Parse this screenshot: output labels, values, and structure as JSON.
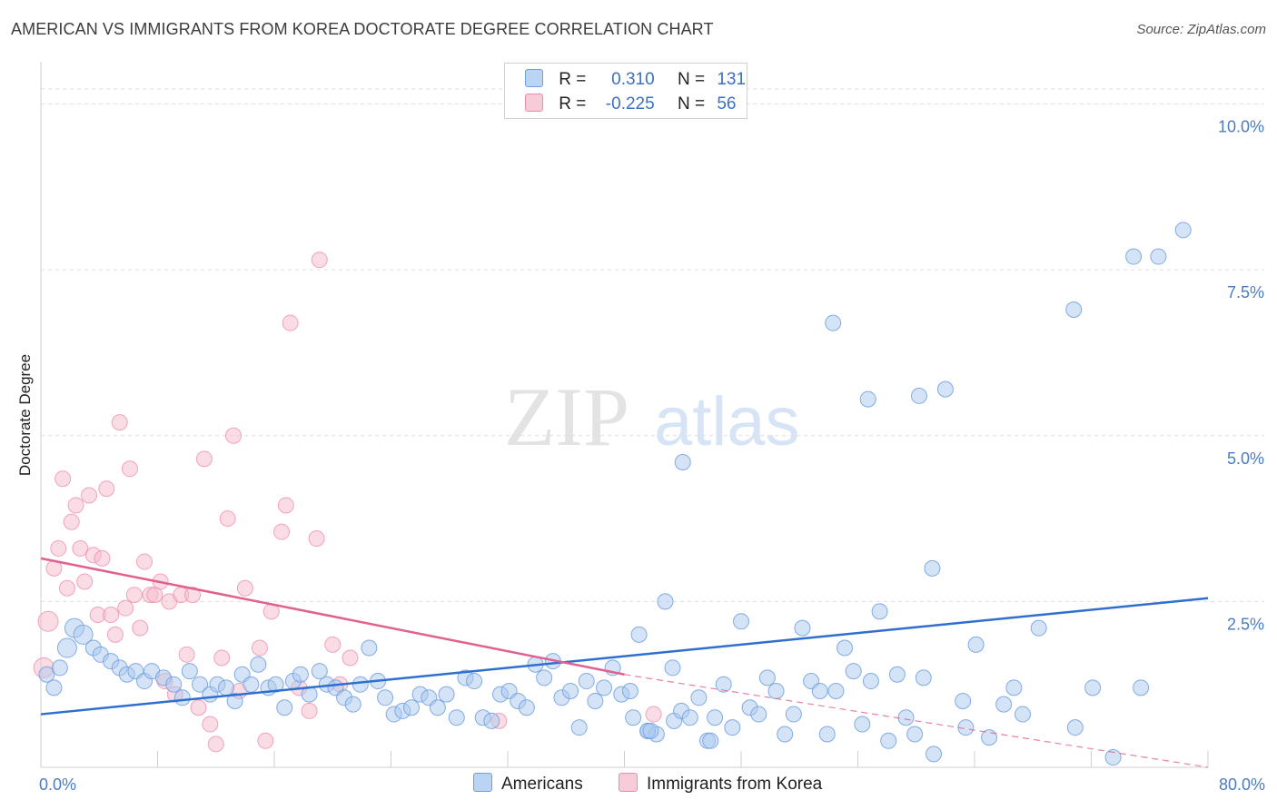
{
  "header": {
    "title": "AMERICAN VS IMMIGRANTS FROM KOREA DOCTORATE DEGREE CORRELATION CHART",
    "source": "Source: ZipAtlas.com"
  },
  "watermark": {
    "zip": "ZIP",
    "atlas": "atlas"
  },
  "legend": {
    "rows": [
      {
        "r_label": "R =",
        "r_value": "0.310",
        "n_label": "N =",
        "n_value": "131",
        "color": "#a9c9ee"
      },
      {
        "r_label": "R =",
        "r_value": "-0.225",
        "n_label": "N =",
        "n_value": "56",
        "color": "#f6b9cb"
      }
    ]
  },
  "bottom_legend": {
    "americans": "Americans",
    "korea": "Immigrants from Korea"
  },
  "chart_data": {
    "type": "scatter",
    "ylabel": "Doctorate Degree",
    "xlabel": "",
    "xlim": [
      0,
      80
    ],
    "ylim": [
      0,
      10.5
    ],
    "x_tick_labels": [
      "0.0%",
      "80.0%"
    ],
    "y_ticks": [
      {
        "value": 2.5,
        "label": "2.5%"
      },
      {
        "value": 5.0,
        "label": "5.0%"
      },
      {
        "value": 7.5,
        "label": "7.5%"
      },
      {
        "value": 10.0,
        "label": "10.0%"
      }
    ],
    "grid": "horizontal dashed",
    "legend_placement": "top-center",
    "colors": {
      "americans": "#6f9fe0",
      "americans_fill": "#a9c9ee",
      "korea": "#ee8aaa",
      "korea_fill": "#f6b9cb",
      "blue_line": "#2f6fd0",
      "pink_line": "#e2608e"
    },
    "series": [
      {
        "name": "Americans",
        "trend": {
          "x1": 0,
          "y1": 0.8,
          "x2": 80,
          "y2": 2.55
        },
        "points": [
          [
            0.4,
            1.4
          ],
          [
            0.9,
            1.2
          ],
          [
            1.3,
            1.5
          ],
          [
            1.8,
            1.8
          ],
          [
            2.3,
            2.1
          ],
          [
            2.9,
            2.0
          ],
          [
            3.6,
            1.8
          ],
          [
            4.1,
            1.7
          ],
          [
            4.8,
            1.6
          ],
          [
            5.4,
            1.5
          ],
          [
            5.9,
            1.4
          ],
          [
            6.5,
            1.45
          ],
          [
            7.1,
            1.3
          ],
          [
            7.6,
            1.45
          ],
          [
            8.4,
            1.35
          ],
          [
            9.1,
            1.25
          ],
          [
            9.7,
            1.05
          ],
          [
            10.2,
            1.45
          ],
          [
            10.9,
            1.25
          ],
          [
            11.6,
            1.1
          ],
          [
            12.1,
            1.25
          ],
          [
            12.7,
            1.2
          ],
          [
            13.3,
            1.0
          ],
          [
            13.8,
            1.4
          ],
          [
            14.4,
            1.25
          ],
          [
            14.9,
            1.55
          ],
          [
            15.6,
            1.2
          ],
          [
            16.1,
            1.25
          ],
          [
            16.7,
            0.9
          ],
          [
            17.3,
            1.3
          ],
          [
            17.8,
            1.4
          ],
          [
            18.4,
            1.1
          ],
          [
            19.1,
            1.45
          ],
          [
            19.6,
            1.25
          ],
          [
            20.2,
            1.2
          ],
          [
            20.8,
            1.05
          ],
          [
            21.4,
            0.95
          ],
          [
            21.9,
            1.25
          ],
          [
            22.5,
            1.8
          ],
          [
            23.1,
            1.3
          ],
          [
            23.6,
            1.05
          ],
          [
            24.2,
            0.8
          ],
          [
            24.8,
            0.85
          ],
          [
            25.4,
            0.9
          ],
          [
            26.0,
            1.1
          ],
          [
            26.6,
            1.05
          ],
          [
            27.2,
            0.9
          ],
          [
            27.8,
            1.1
          ],
          [
            28.5,
            0.75
          ],
          [
            29.1,
            1.35
          ],
          [
            29.7,
            1.3
          ],
          [
            30.3,
            0.75
          ],
          [
            30.9,
            0.7
          ],
          [
            31.5,
            1.1
          ],
          [
            32.1,
            1.15
          ],
          [
            32.7,
            1.0
          ],
          [
            33.3,
            0.9
          ],
          [
            33.9,
            1.55
          ],
          [
            34.5,
            1.35
          ],
          [
            35.1,
            1.6
          ],
          [
            35.7,
            1.05
          ],
          [
            36.3,
            1.15
          ],
          [
            36.9,
            0.6
          ],
          [
            37.4,
            1.3
          ],
          [
            38.0,
            1.0
          ],
          [
            38.6,
            1.2
          ],
          [
            39.2,
            1.5
          ],
          [
            39.8,
            1.1
          ],
          [
            40.4,
            1.15
          ],
          [
            41.0,
            2.0
          ],
          [
            41.6,
            0.55
          ],
          [
            42.2,
            0.5
          ],
          [
            42.8,
            2.5
          ],
          [
            43.4,
            0.7
          ],
          [
            43.9,
            0.85
          ],
          [
            44.5,
            0.75
          ],
          [
            45.1,
            1.05
          ],
          [
            45.7,
            0.4
          ],
          [
            46.2,
            0.75
          ],
          [
            46.8,
            1.25
          ],
          [
            47.4,
            0.6
          ],
          [
            48.0,
            2.2
          ],
          [
            48.6,
            0.9
          ],
          [
            49.2,
            0.8
          ],
          [
            49.8,
            1.35
          ],
          [
            50.4,
            1.15
          ],
          [
            51.0,
            0.5
          ],
          [
            51.6,
            0.8
          ],
          [
            52.2,
            2.1
          ],
          [
            52.8,
            1.3
          ],
          [
            53.4,
            1.15
          ],
          [
            53.9,
            0.5
          ],
          [
            54.5,
            1.15
          ],
          [
            55.1,
            1.8
          ],
          [
            55.7,
            1.45
          ],
          [
            56.3,
            0.65
          ],
          [
            56.9,
            1.3
          ],
          [
            57.5,
            2.35
          ],
          [
            58.1,
            0.4
          ],
          [
            58.7,
            1.4
          ],
          [
            59.3,
            0.75
          ],
          [
            59.9,
            0.5
          ],
          [
            60.5,
            1.35
          ],
          [
            61.2,
            0.2
          ],
          [
            63.4,
            0.6
          ],
          [
            64.1,
            1.85
          ],
          [
            65.0,
            0.45
          ],
          [
            66.0,
            0.95
          ],
          [
            66.7,
            1.2
          ],
          [
            67.3,
            0.8
          ],
          [
            68.4,
            2.1
          ],
          [
            70.9,
            0.6
          ],
          [
            72.1,
            1.2
          ],
          [
            73.5,
            0.15
          ],
          [
            75.4,
            1.2
          ],
          [
            56.7,
            5.55
          ],
          [
            60.2,
            5.6
          ],
          [
            62.0,
            5.7
          ],
          [
            61.1,
            3.0
          ],
          [
            63.2,
            1.0
          ],
          [
            41.6,
            0.55
          ],
          [
            43.3,
            1.5
          ],
          [
            54.3,
            6.7
          ],
          [
            70.8,
            6.9
          ],
          [
            74.9,
            7.7
          ],
          [
            76.6,
            7.7
          ],
          [
            78.3,
            8.1
          ],
          [
            41.8,
            0.55
          ],
          [
            40.6,
            0.75
          ],
          [
            44.0,
            4.6
          ],
          [
            45.9,
            0.4
          ]
        ]
      },
      {
        "name": "Immigrants from Korea",
        "trend": {
          "x1": 0,
          "y1": 3.15,
          "x2": 40,
          "y2": 1.4,
          "dash_to_x": 80,
          "dash_to_y": 0.0
        },
        "points": [
          [
            0.2,
            1.5
          ],
          [
            0.5,
            2.2
          ],
          [
            0.9,
            3.0
          ],
          [
            1.2,
            3.3
          ],
          [
            1.5,
            4.35
          ],
          [
            1.8,
            2.7
          ],
          [
            2.1,
            3.7
          ],
          [
            2.4,
            3.95
          ],
          [
            2.7,
            3.3
          ],
          [
            3.0,
            2.8
          ],
          [
            3.3,
            4.1
          ],
          [
            3.6,
            3.2
          ],
          [
            3.9,
            2.3
          ],
          [
            4.2,
            3.15
          ],
          [
            4.5,
            4.2
          ],
          [
            4.8,
            2.3
          ],
          [
            5.1,
            2.0
          ],
          [
            5.4,
            5.2
          ],
          [
            5.8,
            2.4
          ],
          [
            6.1,
            4.5
          ],
          [
            6.4,
            2.6
          ],
          [
            6.8,
            2.1
          ],
          [
            7.1,
            3.1
          ],
          [
            7.5,
            2.6
          ],
          [
            7.8,
            2.6
          ],
          [
            8.2,
            2.8
          ],
          [
            8.5,
            1.3
          ],
          [
            8.8,
            2.5
          ],
          [
            9.2,
            1.1
          ],
          [
            9.6,
            2.6
          ],
          [
            10.0,
            1.7
          ],
          [
            10.4,
            2.6
          ],
          [
            10.8,
            0.9
          ],
          [
            11.2,
            4.65
          ],
          [
            11.6,
            0.65
          ],
          [
            12.0,
            0.35
          ],
          [
            12.4,
            1.65
          ],
          [
            12.8,
            3.75
          ],
          [
            13.2,
            5.0
          ],
          [
            13.6,
            1.15
          ],
          [
            14.0,
            2.7
          ],
          [
            15.0,
            1.8
          ],
          [
            15.4,
            0.4
          ],
          [
            15.8,
            2.35
          ],
          [
            16.5,
            3.55
          ],
          [
            16.8,
            3.95
          ],
          [
            17.1,
            6.7
          ],
          [
            17.7,
            1.2
          ],
          [
            18.4,
            0.85
          ],
          [
            18.9,
            3.45
          ],
          [
            19.1,
            7.65
          ],
          [
            20.0,
            1.85
          ],
          [
            20.5,
            1.25
          ],
          [
            21.2,
            1.65
          ],
          [
            31.4,
            0.7
          ],
          [
            42.0,
            0.8
          ]
        ]
      }
    ]
  }
}
